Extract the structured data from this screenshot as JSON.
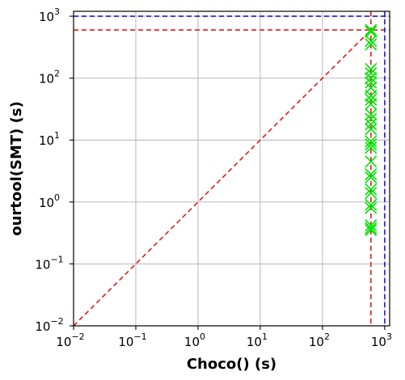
{
  "chart_data": {
    "type": "scatter",
    "xlabel": "Choco() (s)",
    "ylabel": "ourtool(SMT) (s)",
    "xscale": "log",
    "yscale": "log",
    "xlim": [
      0.01,
      1200
    ],
    "ylim": [
      0.01,
      1200
    ],
    "grid": true,
    "x_ticks": [
      {
        "value": 0.01,
        "base": "10",
        "exp": "−2"
      },
      {
        "value": 0.1,
        "base": "10",
        "exp": "−1"
      },
      {
        "value": 1,
        "base": "10",
        "exp": "0"
      },
      {
        "value": 10,
        "base": "10",
        "exp": "1"
      },
      {
        "value": 100,
        "base": "10",
        "exp": "2"
      },
      {
        "value": 1000,
        "base": "10",
        "exp": "3"
      }
    ],
    "y_ticks": [
      {
        "value": 0.01,
        "base": "10",
        "exp": "−2"
      },
      {
        "value": 0.1,
        "base": "10",
        "exp": "−1"
      },
      {
        "value": 1,
        "base": "10",
        "exp": "0"
      },
      {
        "value": 10,
        "base": "10",
        "exp": "1"
      },
      {
        "value": 100,
        "base": "10",
        "exp": "2"
      },
      {
        "value": 1000,
        "base": "10",
        "exp": "3"
      }
    ],
    "reference_lines": {
      "diagonal": {
        "from": [
          0.01,
          0.01
        ],
        "to": [
          600,
          600
        ],
        "color": "#e41a1c"
      },
      "timeout_red": {
        "value": 600,
        "color": "#e41a1c"
      },
      "timeout_blue": {
        "value": 1000,
        "color": "#1a1acd"
      }
    },
    "series": [
      {
        "marker": "x",
        "color": "#00e400",
        "points": [
          [
            600,
            0.35
          ],
          [
            600,
            0.38
          ],
          [
            600,
            0.42
          ],
          [
            600,
            0.8
          ],
          [
            600,
            0.9
          ],
          [
            600,
            1.4
          ],
          [
            600,
            1.6
          ],
          [
            600,
            2.5
          ],
          [
            600,
            2.8
          ],
          [
            600,
            4.5
          ],
          [
            600,
            7.5
          ],
          [
            600,
            8.5
          ],
          [
            600,
            9.5
          ],
          [
            600,
            15
          ],
          [
            600,
            18
          ],
          [
            600,
            22
          ],
          [
            600,
            26
          ],
          [
            600,
            38
          ],
          [
            600,
            45
          ],
          [
            600,
            52
          ],
          [
            600,
            70
          ],
          [
            600,
            85
          ],
          [
            600,
            100
          ],
          [
            600,
            120
          ],
          [
            600,
            140
          ],
          [
            600,
            350
          ],
          [
            600,
            400
          ],
          [
            600,
            560
          ],
          [
            600,
            600
          ]
        ]
      }
    ]
  }
}
